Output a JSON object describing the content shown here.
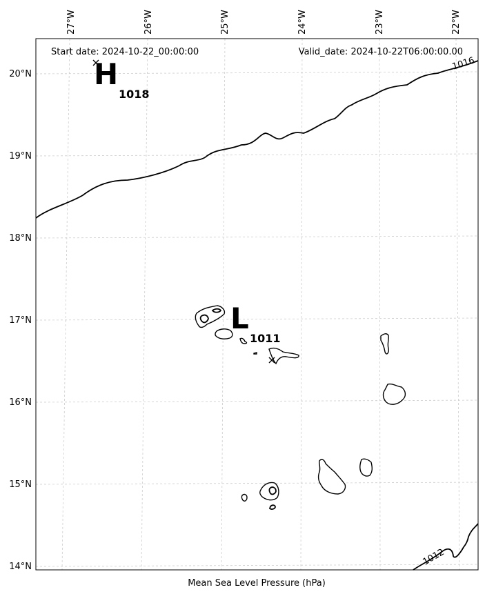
{
  "header": {
    "start_date": "Start date: 2024-10-22_00:00:00",
    "valid_date": "Valid_date: 2024-10-22T06:00:00.00"
  },
  "xlabel": "Mean Sea Level Pressure (hPa)",
  "lon_ticks": [
    "27°W",
    "26°W",
    "25°W",
    "24°W",
    "23°W",
    "22°W"
  ],
  "lat_ticks": [
    "20°N",
    "19°N",
    "18°N",
    "17°N",
    "16°N",
    "15°N",
    "14°N"
  ],
  "high": {
    "letter": "H",
    "value": "1018"
  },
  "low": {
    "letter": "L",
    "value": "1011"
  },
  "isobars": [
    {
      "label": "1016"
    },
    {
      "label": "1012"
    }
  ],
  "colors": {
    "coast": "#000000",
    "grid": "#cccccc",
    "isobar": "#000000"
  }
}
